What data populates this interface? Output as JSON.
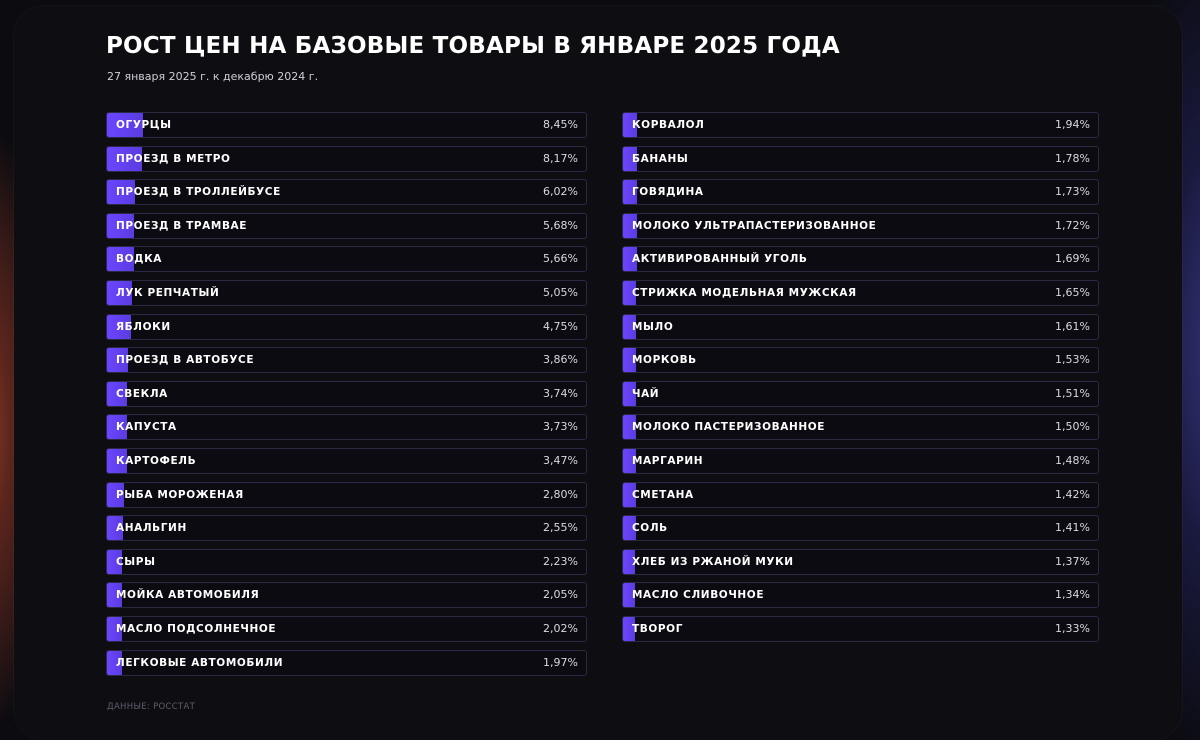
{
  "title": "РОСТ ЦЕН НА БАЗОВЫЕ ТОВАРЫ В ЯНВАРЕ 2025 ГОДА",
  "subtitle": "27 января 2025 г. к декабрю 2024 г.",
  "source": "ДАННЫЕ: РОССТАТ",
  "colors": {
    "bar": "#6c45ff",
    "row_border": "#2b2a44",
    "background": "#0d0d12"
  },
  "chart_data": {
    "type": "bar",
    "orientation": "horizontal",
    "title": "РОСТ ЦЕН НА БАЗОВЫЕ ТОВАРЫ В ЯНВАРЕ 2025 ГОДА",
    "subtitle": "27 января 2025 г. к декабрю 2024 г.",
    "unit": "%",
    "columns": [
      [
        {
          "label": "ОГУРЦЫ",
          "value": 8.45,
          "text": "8,45%"
        },
        {
          "label": "ПРОЕЗД В МЕТРО",
          "value": 8.17,
          "text": "8,17%"
        },
        {
          "label": "ПРОЕЗД В ТРОЛЛЕЙБУСЕ",
          "value": 6.02,
          "text": "6,02%"
        },
        {
          "label": "ПРОЕЗД В ТРАМВАЕ",
          "value": 5.68,
          "text": "5,68%"
        },
        {
          "label": "ВОДКА",
          "value": 5.66,
          "text": "5,66%"
        },
        {
          "label": "ЛУК РЕПЧАТЫЙ",
          "value": 5.05,
          "text": "5,05%"
        },
        {
          "label": "ЯБЛОКИ",
          "value": 4.75,
          "text": "4,75%"
        },
        {
          "label": "ПРОЕЗД В АВТОБУСЕ",
          "value": 3.86,
          "text": "3,86%"
        },
        {
          "label": "СВЕКЛА",
          "value": 3.74,
          "text": "3,74%"
        },
        {
          "label": "КАПУСТА",
          "value": 3.73,
          "text": "3,73%"
        },
        {
          "label": "КАРТОФЕЛЬ",
          "value": 3.47,
          "text": "3,47%"
        },
        {
          "label": "РЫБА МОРОЖЕНАЯ",
          "value": 2.8,
          "text": "2,80%"
        },
        {
          "label": "АНАЛЬГИН",
          "value": 2.55,
          "text": "2,55%"
        },
        {
          "label": "СЫРЫ",
          "value": 2.23,
          "text": "2,23%"
        },
        {
          "label": "МОЙКА АВТОМОБИЛЯ",
          "value": 2.05,
          "text": "2,05%"
        },
        {
          "label": "МАСЛО ПОДСОЛНЕЧНОЕ",
          "value": 2.02,
          "text": "2,02%"
        },
        {
          "label": "ЛЕГКОВЫЕ АВТОМОБИЛИ",
          "value": 1.97,
          "text": "1,97%"
        }
      ],
      [
        {
          "label": "КОРВАЛОЛ",
          "value": 1.94,
          "text": "1,94%"
        },
        {
          "label": "БАНАНЫ",
          "value": 1.78,
          "text": "1,78%"
        },
        {
          "label": "ГОВЯДИНА",
          "value": 1.73,
          "text": "1,73%"
        },
        {
          "label": "МОЛОКО УЛЬТРАПАСТЕРИЗОВАННОЕ",
          "value": 1.72,
          "text": "1,72%"
        },
        {
          "label": "АКТИВИРОВАННЫЙ УГОЛЬ",
          "value": 1.69,
          "text": "1,69%"
        },
        {
          "label": "СТРИЖКА МОДЕЛЬНАЯ МУЖСКАЯ",
          "value": 1.65,
          "text": "1,65%"
        },
        {
          "label": "МЫЛО",
          "value": 1.61,
          "text": "1,61%"
        },
        {
          "label": "МОРКОВЬ",
          "value": 1.53,
          "text": "1,53%"
        },
        {
          "label": "ЧАЙ",
          "value": 1.51,
          "text": "1,51%"
        },
        {
          "label": "МОЛОКО ПАСТЕРИЗОВАННОЕ",
          "value": 1.5,
          "text": "1,50%"
        },
        {
          "label": "МАРГАРИН",
          "value": 1.48,
          "text": "1,48%"
        },
        {
          "label": "СМЕТАНА",
          "value": 1.42,
          "text": "1,42%"
        },
        {
          "label": "СОЛЬ",
          "value": 1.41,
          "text": "1,41%"
        },
        {
          "label": "ХЛЕБ ИЗ РЖАНОЙ МУКИ",
          "value": 1.37,
          "text": "1,37%"
        },
        {
          "label": "МАСЛО СЛИВОЧНОЕ",
          "value": 1.34,
          "text": "1,34%"
        },
        {
          "label": "ТВОРОГ",
          "value": 1.33,
          "text": "1,33%"
        }
      ]
    ]
  }
}
